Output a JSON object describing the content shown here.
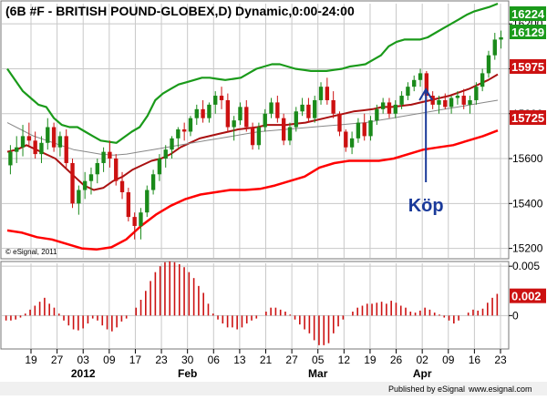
{
  "header": {
    "title": "(6B #F - BRITISH POUND-GLOBEX,D) Dynamic,0:00-24:00"
  },
  "watermark": "© eSignal, 2011",
  "footer": {
    "published_by": "Published by eSignal",
    "url": "www.esignal.com"
  },
  "annotation": {
    "text": "Köp",
    "date": "Apr 02"
  },
  "price_labels": [
    {
      "text": "16224",
      "value": 16224,
      "color": "#1a9a1a"
    },
    {
      "text": "16129",
      "value": 16129,
      "color": "#1a9a1a"
    },
    {
      "text": "15975",
      "value": 15975,
      "color": "#cc1111"
    },
    {
      "text": "15725",
      "value": 15725,
      "color": "#cc1111"
    }
  ],
  "osc_labels": [
    {
      "text": "0.002",
      "value": 0.002,
      "color": "#cc1111"
    }
  ],
  "colors": {
    "up": "#1a8a1a",
    "down": "#cc1111",
    "upper_band": "#1a9a1a",
    "lower_band": "#ff0000",
    "mid": "#aa1111",
    "slow": "#888888",
    "annotation": "#1a3a9a",
    "label_text": "#ffffff",
    "grid": "#c8c8c8"
  },
  "chart_data": [
    {
      "type": "candlestick",
      "ylim": [
        15170,
        16290
      ],
      "ytick_labels": [
        "15200",
        "15400",
        "15600",
        "15800",
        "16000",
        "16200"
      ],
      "xtick_labels": [
        "19",
        "27",
        "03",
        "09",
        "17",
        "23",
        "30",
        "06",
        "13",
        "21",
        "27",
        "05",
        "12",
        "19",
        "26",
        "02",
        "09",
        "16",
        "23"
      ],
      "months": [
        "2012",
        "Feb",
        "Mar",
        "Apr"
      ],
      "grid": true,
      "ohlc": [
        [
          15570,
          15660,
          15530,
          15630
        ],
        [
          15630,
          15700,
          15580,
          15650
        ],
        [
          15650,
          15750,
          15610,
          15700
        ],
        [
          15700,
          15760,
          15650,
          15680
        ],
        [
          15680,
          15720,
          15600,
          15620
        ],
        [
          15620,
          15700,
          15580,
          15670
        ],
        [
          15670,
          15780,
          15640,
          15740
        ],
        [
          15740,
          15760,
          15630,
          15650
        ],
        [
          15650,
          15720,
          15610,
          15700
        ],
        [
          15700,
          15730,
          15560,
          15580
        ],
        [
          15580,
          15600,
          15380,
          15400
        ],
        [
          15400,
          15480,
          15350,
          15460
        ],
        [
          15460,
          15540,
          15420,
          15500
        ],
        [
          15500,
          15560,
          15440,
          15530
        ],
        [
          15530,
          15600,
          15490,
          15580
        ],
        [
          15580,
          15650,
          15540,
          15630
        ],
        [
          15630,
          15680,
          15560,
          15600
        ],
        [
          15600,
          15620,
          15480,
          15500
        ],
        [
          15500,
          15540,
          15420,
          15450
        ],
        [
          15450,
          15470,
          15320,
          15340
        ],
        [
          15340,
          15360,
          15240,
          15300
        ],
        [
          15300,
          15380,
          15240,
          15360
        ],
        [
          15360,
          15480,
          15340,
          15460
        ],
        [
          15460,
          15550,
          15440,
          15530
        ],
        [
          15530,
          15620,
          15500,
          15600
        ],
        [
          15600,
          15660,
          15560,
          15640
        ],
        [
          15640,
          15700,
          15600,
          15690
        ],
        [
          15690,
          15740,
          15650,
          15730
        ],
        [
          15730,
          15760,
          15680,
          15720
        ],
        [
          15720,
          15790,
          15700,
          15780
        ],
        [
          15780,
          15840,
          15750,
          15820
        ],
        [
          15820,
          15860,
          15760,
          15780
        ],
        [
          15780,
          15850,
          15760,
          15840
        ],
        [
          15840,
          15900,
          15800,
          15880
        ],
        [
          15880,
          15920,
          15820,
          15860
        ],
        [
          15860,
          15890,
          15720,
          15740
        ],
        [
          15740,
          15790,
          15680,
          15770
        ],
        [
          15770,
          15850,
          15750,
          15830
        ],
        [
          15830,
          15860,
          15720,
          15740
        ],
        [
          15740,
          15760,
          15640,
          15660
        ],
        [
          15660,
          15760,
          15640,
          15740
        ],
        [
          15740,
          15820,
          15720,
          15800
        ],
        [
          15800,
          15870,
          15780,
          15850
        ],
        [
          15850,
          15880,
          15760,
          15780
        ],
        [
          15780,
          15800,
          15660,
          15680
        ],
        [
          15680,
          15760,
          15660,
          15740
        ],
        [
          15740,
          15830,
          15720,
          15810
        ],
        [
          15810,
          15870,
          15790,
          15840
        ],
        [
          15840,
          15870,
          15760,
          15780
        ],
        [
          15780,
          15880,
          15760,
          15860
        ],
        [
          15860,
          15940,
          15840,
          15920
        ],
        [
          15920,
          15960,
          15840,
          15860
        ],
        [
          15860,
          15900,
          15780,
          15800
        ],
        [
          15800,
          15810,
          15700,
          15720
        ],
        [
          15720,
          15730,
          15630,
          15650
        ],
        [
          15650,
          15720,
          15620,
          15690
        ],
        [
          15690,
          15780,
          15670,
          15760
        ],
        [
          15760,
          15800,
          15680,
          15700
        ],
        [
          15700,
          15790,
          15680,
          15770
        ],
        [
          15770,
          15840,
          15750,
          15820
        ],
        [
          15820,
          15870,
          15800,
          15850
        ],
        [
          15850,
          15870,
          15780,
          15800
        ],
        [
          15800,
          15860,
          15780,
          15840
        ],
        [
          15840,
          15900,
          15820,
          15880
        ],
        [
          15880,
          15940,
          15860,
          15920
        ],
        [
          15920,
          15970,
          15900,
          15950
        ],
        [
          15950,
          16000,
          15920,
          15980
        ],
        [
          15980,
          15990,
          15860,
          15880
        ],
        [
          15880,
          15900,
          15820,
          15840
        ],
        [
          15840,
          15880,
          15800,
          15860
        ],
        [
          15860,
          15890,
          15820,
          15830
        ],
        [
          15830,
          15880,
          15800,
          15870
        ],
        [
          15870,
          15900,
          15840,
          15880
        ],
        [
          15880,
          15910,
          15820,
          15840
        ],
        [
          15840,
          15880,
          15800,
          15860
        ],
        [
          15860,
          15940,
          15840,
          15920
        ],
        [
          15920,
          16000,
          15900,
          15980
        ],
        [
          15980,
          16080,
          15960,
          16060
        ],
        [
          16060,
          16160,
          16040,
          16130
        ],
        [
          16130,
          16170,
          16090,
          16140
        ]
      ],
      "series": [
        {
          "name": "",
          "kind": "upper_band",
          "values": [
            16000,
            15950,
            15900,
            15870,
            15840,
            15830,
            15780,
            15750,
            15740,
            15740,
            15720,
            15700,
            15680,
            15675,
            15670,
            15695,
            15720,
            15740,
            15790,
            15860,
            15890,
            15910,
            15930,
            15940,
            15950,
            15960,
            15960,
            15955,
            15950,
            15955,
            15960,
            15980,
            16000,
            16010,
            16020,
            16020,
            16010,
            16000,
            15995,
            15990,
            15990,
            15990,
            15995,
            16000,
            16010,
            16015,
            16020,
            16040,
            16060,
            16100,
            16120,
            16130,
            16130,
            16130,
            16140,
            16160,
            16180,
            16200,
            16220,
            16240,
            16256,
            16266,
            16276,
            16290
          ]
        },
        {
          "name": "",
          "kind": "mid",
          "values": [
            15630,
            15640,
            15660,
            15640,
            15620,
            15600,
            15560,
            15520,
            15480,
            15460,
            15470,
            15500,
            15520,
            15550,
            15570,
            15590,
            15600,
            15620,
            15650,
            15670,
            15690,
            15700,
            15710,
            15720,
            15730,
            15735,
            15740,
            15750,
            15750,
            15750,
            15755,
            15760,
            15770,
            15780,
            15790,
            15800,
            15810,
            15815,
            15820,
            15830,
            15830,
            15835,
            15840,
            15850,
            15860,
            15870,
            15880,
            15895,
            15910,
            15930,
            15950,
            15975
          ]
        },
        {
          "name": "",
          "kind": "slow",
          "values": [
            15760,
            15730,
            15700,
            15680,
            15660,
            15640,
            15630,
            15620,
            15615,
            15620,
            15630,
            15640,
            15650,
            15660,
            15670,
            15680,
            15690,
            15700,
            15710,
            15720,
            15725,
            15730,
            15735,
            15740,
            15745,
            15750,
            15755,
            15760,
            15770,
            15780,
            15790,
            15800,
            15810,
            15820,
            15830,
            15840,
            15850,
            15860
          ]
        },
        {
          "name": "",
          "kind": "lower_band",
          "values": [
            15280,
            15270,
            15250,
            15240,
            15220,
            15200,
            15195,
            15205,
            15240,
            15300,
            15350,
            15390,
            15420,
            15440,
            15450,
            15460,
            15460,
            15465,
            15480,
            15500,
            15520,
            15560,
            15580,
            15590,
            15590,
            15590,
            15600,
            15620,
            15640,
            15650,
            15660,
            15680,
            15700,
            15725
          ]
        }
      ]
    },
    {
      "type": "bar",
      "ylim": [
        -0.0032,
        0.0052
      ],
      "ytick_labels": [
        "0.005",
        "0"
      ],
      "values": [
        -0.0005,
        -0.0005,
        -0.0004,
        -0.0002,
        0.0002,
        0.0006,
        0.001,
        0.0014,
        0.0018,
        0.0012,
        0.0008,
        0.0002,
        -0.0005,
        -0.001,
        -0.0014,
        -0.0015,
        -0.0013,
        -0.0008,
        -0.0003,
        -0.0005,
        -0.001,
        -0.0014,
        -0.0016,
        -0.0012,
        -0.0006,
        -0.0003,
        0,
        0.0008,
        0.0016,
        0.0025,
        0.0035,
        0.0044,
        0.005,
        0.0054,
        0.0055,
        0.0054,
        0.0052,
        0.0049,
        0.0044,
        0.0038,
        0.003,
        0.0023,
        0.0012,
        0.0002,
        -0.0004,
        -0.0008,
        -0.0012,
        -0.0012,
        -0.0014,
        -0.0012,
        -0.0008,
        -0.0005,
        -0.0003,
        0,
        0.0004,
        0.0008,
        0.0008,
        0.0006,
        0.0004,
        0.0001,
        -0.0004,
        -0.0009,
        -0.0014,
        -0.0018,
        -0.0025,
        -0.003,
        -0.003,
        -0.0028,
        -0.0018,
        -0.0011,
        -0.0004,
        0,
        0.0004,
        0.0008,
        0.001,
        0.0012,
        0.0012,
        0.0013,
        0.0014,
        0.0012,
        0.0015,
        0.0013,
        0.001,
        0.0008,
        0.0004,
        0.0003,
        0.0005,
        0.0008,
        0.0006,
        0.0003,
        0.0001,
        -0.0002,
        -0.0005,
        -0.0008,
        -0.0005,
        0,
        0.0003,
        0.0006,
        0.0005,
        0.0007,
        0.0013,
        0.0018,
        0.0022
      ]
    }
  ]
}
